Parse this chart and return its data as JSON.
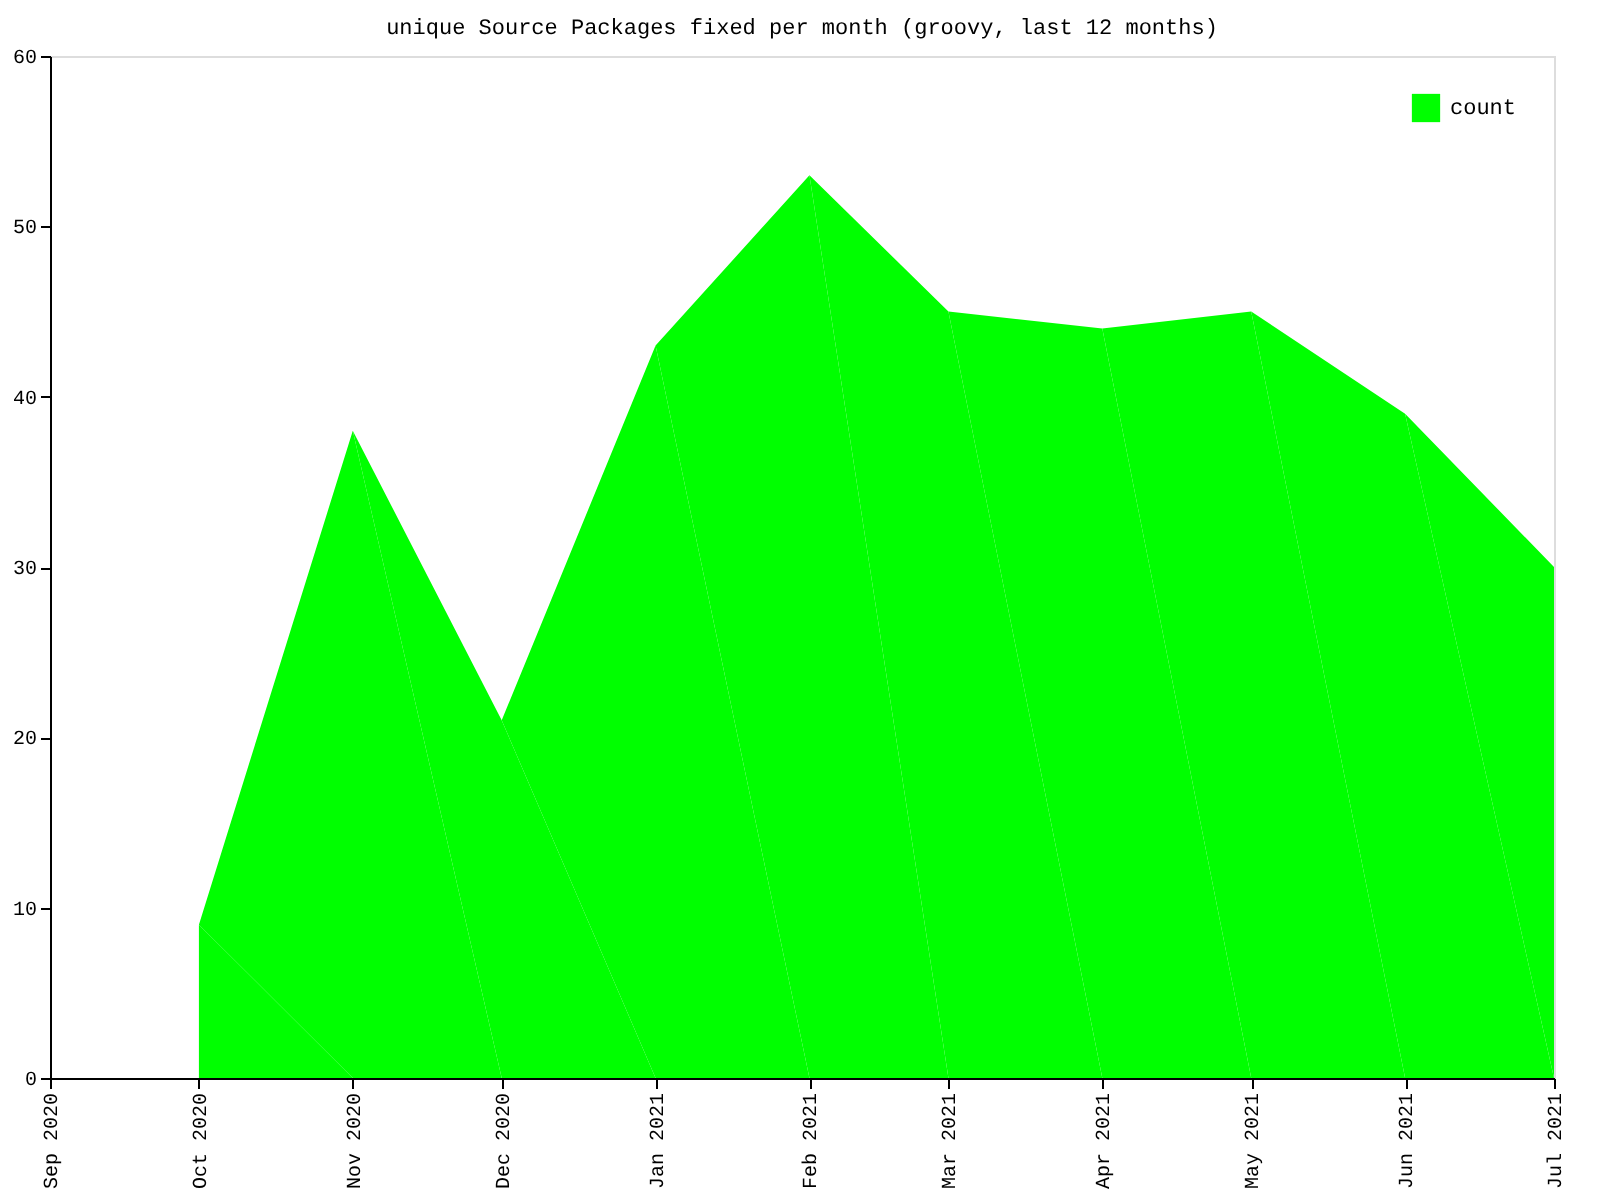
{
  "chart_data": {
    "type": "area",
    "title": "unique Source Packages fixed per month (groovy, last 12 months)",
    "x": [
      "2020-10-01",
      "2020-11-01",
      "2020-12-01",
      "2021-01-01",
      "2021-02-01",
      "2021-03-01",
      "2021-04-01",
      "2021-05-01",
      "2021-06-01",
      "2021-07-01"
    ],
    "series": [
      {
        "name": "count",
        "color": "#00ff00",
        "values": [
          9,
          38,
          21,
          43,
          53,
          45,
          44,
          45,
          39,
          30
        ]
      }
    ],
    "xlim": [
      "2020-09-01",
      "2021-07-01"
    ],
    "xticks": [
      {
        "value": "2020-09-01",
        "label": "Sep 2020"
      },
      {
        "value": "2020-10-01",
        "label": "Oct 2020"
      },
      {
        "value": "2020-11-01",
        "label": "Nov 2020"
      },
      {
        "value": "2020-12-01",
        "label": "Dec 2020"
      },
      {
        "value": "2021-01-01",
        "label": "Jan 2021"
      },
      {
        "value": "2021-02-01",
        "label": "Feb 2021"
      },
      {
        "value": "2021-03-01",
        "label": "Mar 2021"
      },
      {
        "value": "2021-04-01",
        "label": "Apr 2021"
      },
      {
        "value": "2021-05-01",
        "label": "May 2021"
      },
      {
        "value": "2021-06-01",
        "label": "Jun 2021"
      },
      {
        "value": "2021-07-01",
        "label": "Jul 2021"
      }
    ],
    "ylim": [
      0,
      60
    ],
    "yticks": [
      0,
      10,
      20,
      30,
      40,
      50,
      60
    ],
    "grid": false,
    "legend": "top right"
  }
}
